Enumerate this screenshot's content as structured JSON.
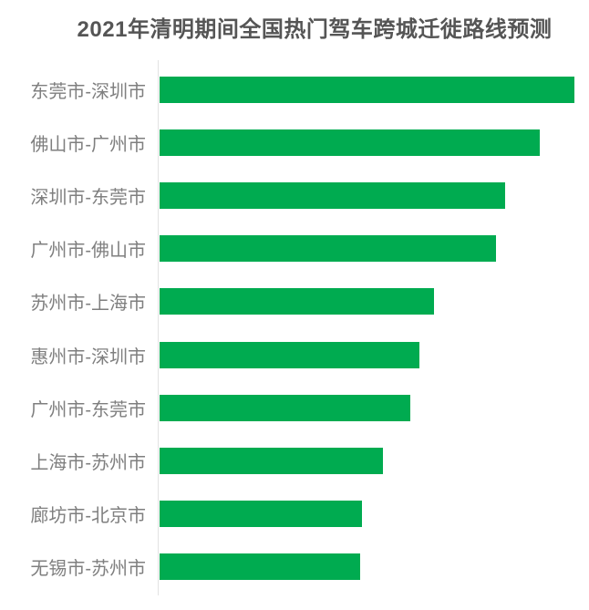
{
  "page": {
    "background_color": "#ffffff"
  },
  "chart_data": {
    "type": "bar",
    "orientation": "horizontal",
    "title": "2021年清明期间全国热门驾车跨城迁徙路线预测",
    "categories": [
      "东莞市-深圳市",
      "佛山市-广州市",
      "深圳市-东莞市",
      "广州市-佛山市",
      "苏州市-上海市",
      "惠州市-深圳市",
      "广州市-东莞市",
      "上海市-苏州市",
      "廊坊市-北京市",
      "无锡市-苏州市"
    ],
    "values": [
      100,
      91.6,
      83.3,
      81.1,
      66.2,
      62.6,
      60.4,
      53.8,
      48.8,
      48.4
    ],
    "value_unit": "relative length, % of longest bar (no numeric labels shown in chart)",
    "sort_order": "descending",
    "xlabel": "",
    "ylabel": "",
    "grid": false,
    "legend": null,
    "value_labels_shown": false,
    "bar_color": "#00ab50",
    "title_color": "#555555",
    "label_color": "#7f7f7f",
    "axis_line_color": "#e3e3e3"
  }
}
